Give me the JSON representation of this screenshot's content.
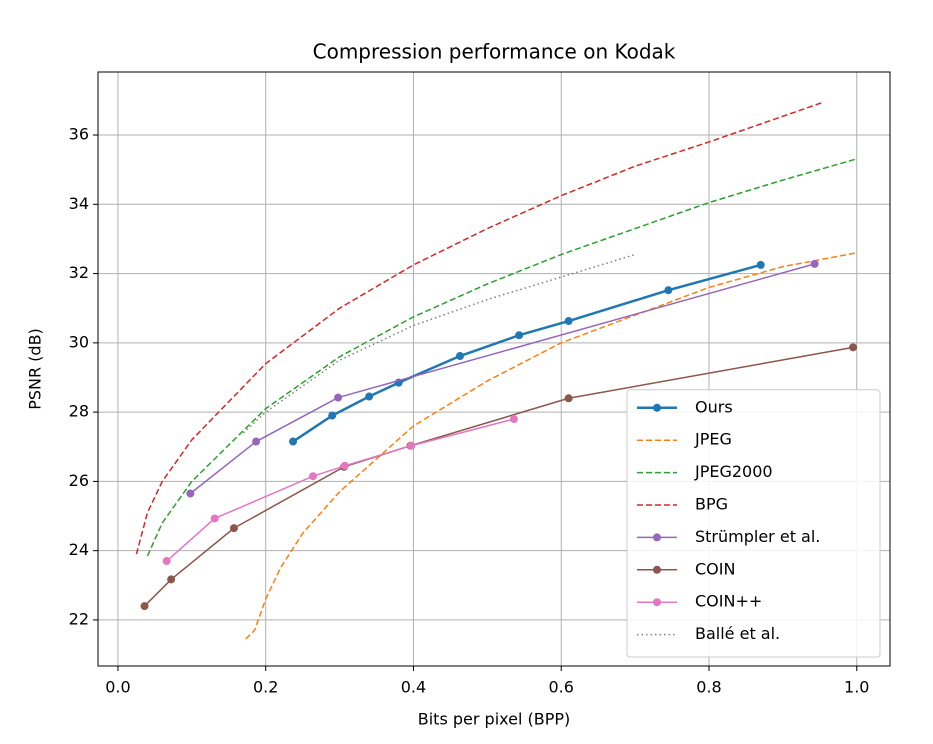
{
  "chart_data": {
    "type": "line",
    "title": "Compression performance on Kodak",
    "xlabel": "Bits per pixel (BPP)",
    "ylabel": "PSNR (dB)",
    "xlim": [
      -0.027,
      1.045
    ],
    "ylim": [
      20.67,
      37.82
    ],
    "xticks": [
      {
        "value": 0,
        "label": "0.0"
      },
      0.2,
      0.4,
      0.6,
      0.8,
      {
        "value": 1,
        "label": "1.0"
      }
    ],
    "yticks": [
      22,
      24,
      26,
      28,
      30,
      32,
      34,
      36
    ],
    "grid": true,
    "legend": "lower right",
    "series": [
      {
        "name": "Ours",
        "color": "#1f77b4",
        "linestyle": "solid",
        "linewidth": 2.5,
        "marker": true,
        "x": [
          0.237,
          0.29,
          0.34,
          0.38,
          0.463,
          0.543,
          0.61,
          0.745,
          0.87
        ],
        "values": [
          27.15,
          27.9,
          28.45,
          28.85,
          29.62,
          30.22,
          30.63,
          31.52,
          32.25
        ]
      },
      {
        "name": "JPEG",
        "color": "#ff7f0e",
        "linestyle": "dashed",
        "linewidth": 1.5,
        "marker": false,
        "x": [
          0.173,
          0.185,
          0.2,
          0.22,
          0.25,
          0.3,
          0.4,
          0.5,
          0.6,
          0.7,
          0.8,
          0.9,
          1.0
        ],
        "values": [
          21.45,
          21.7,
          22.6,
          23.5,
          24.5,
          25.7,
          27.6,
          28.9,
          30.0,
          30.8,
          31.6,
          32.2,
          32.6
        ]
      },
      {
        "name": "JPEG2000",
        "color": "#2ca02c",
        "linestyle": "dashed",
        "linewidth": 1.5,
        "marker": false,
        "x": [
          0.04,
          0.06,
          0.1,
          0.2,
          0.3,
          0.4,
          0.5,
          0.6,
          0.7,
          0.8,
          0.9,
          0.998
        ],
        "values": [
          23.85,
          24.8,
          26.0,
          28.1,
          29.6,
          30.75,
          31.7,
          32.55,
          33.3,
          34.05,
          34.7,
          35.3
        ]
      },
      {
        "name": "BPG",
        "color": "#d62728",
        "linestyle": "dashed",
        "linewidth": 1.5,
        "marker": false,
        "x": [
          0.025,
          0.04,
          0.06,
          0.1,
          0.2,
          0.3,
          0.4,
          0.5,
          0.6,
          0.7,
          0.8,
          0.955
        ],
        "values": [
          23.9,
          25.1,
          26.0,
          27.2,
          29.4,
          31.0,
          32.25,
          33.3,
          34.25,
          35.1,
          35.8,
          36.95
        ]
      },
      {
        "name": "Strümpler et al.",
        "color": "#9467bd",
        "linestyle": "solid",
        "linewidth": 1.5,
        "marker": true,
        "x": [
          0.098,
          0.187,
          0.298,
          0.943
        ],
        "values": [
          25.65,
          27.15,
          28.42,
          32.28
        ]
      },
      {
        "name": "COIN",
        "color": "#8c564b",
        "linestyle": "solid",
        "linewidth": 1.5,
        "marker": true,
        "x": [
          0.036,
          0.072,
          0.157,
          0.306,
          0.396,
          0.61,
          0.995
        ],
        "values": [
          22.4,
          23.17,
          24.65,
          26.42,
          27.03,
          28.4,
          29.87
        ]
      },
      {
        "name": "COIN++",
        "color": "#e377c2",
        "linestyle": "solid",
        "linewidth": 1.5,
        "marker": true,
        "x": [
          0.066,
          0.131,
          0.264,
          0.307,
          0.397,
          0.536
        ],
        "values": [
          23.7,
          24.93,
          26.15,
          26.45,
          27.03,
          27.8
        ]
      },
      {
        "name": "Ballé et al.",
        "color": "#7f7f7f",
        "linestyle": "dotted",
        "linewidth": 1.5,
        "marker": false,
        "x": [
          0.17,
          0.2,
          0.3,
          0.4,
          0.5,
          0.6,
          0.7
        ],
        "values": [
          27.4,
          28.0,
          29.5,
          30.5,
          31.25,
          31.9,
          32.55
        ]
      }
    ]
  }
}
